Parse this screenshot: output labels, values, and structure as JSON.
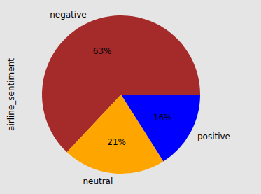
{
  "chart_data": {
    "type": "pie",
    "ylabel": "airline_sentiment",
    "categories": [
      "negative",
      "neutral",
      "positive"
    ],
    "values": [
      63,
      21,
      16
    ],
    "value_labels": [
      "63%",
      "21%",
      "16%"
    ],
    "colors": [
      "#a52a2a",
      "#ffa500",
      "#0000ff"
    ],
    "data_labels": true
  }
}
